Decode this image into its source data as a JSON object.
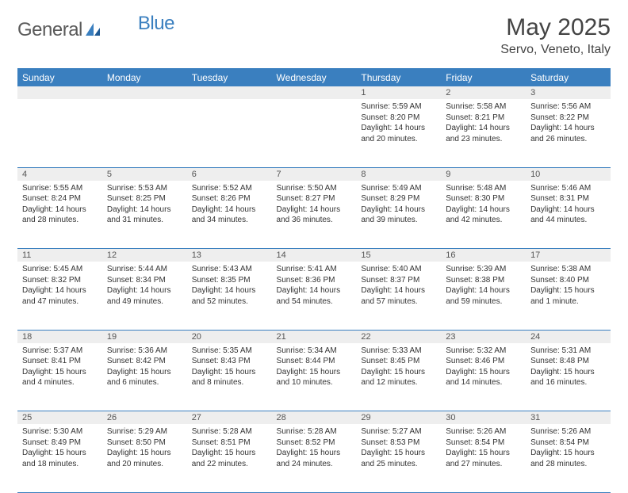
{
  "brand": {
    "part1": "General",
    "part2": "Blue"
  },
  "title": "May 2025",
  "location": "Servo, Veneto, Italy",
  "colors": {
    "accent": "#3a7fbf",
    "header_text": "#ffffff",
    "daynum_bg": "#eeeeee",
    "text": "#333333"
  },
  "weekdays": [
    "Sunday",
    "Monday",
    "Tuesday",
    "Wednesday",
    "Thursday",
    "Friday",
    "Saturday"
  ],
  "weeks": [
    [
      null,
      null,
      null,
      null,
      {
        "n": "1",
        "sr": "Sunrise: 5:59 AM",
        "ss": "Sunset: 8:20 PM",
        "d1": "Daylight: 14 hours",
        "d2": "and 20 minutes."
      },
      {
        "n": "2",
        "sr": "Sunrise: 5:58 AM",
        "ss": "Sunset: 8:21 PM",
        "d1": "Daylight: 14 hours",
        "d2": "and 23 minutes."
      },
      {
        "n": "3",
        "sr": "Sunrise: 5:56 AM",
        "ss": "Sunset: 8:22 PM",
        "d1": "Daylight: 14 hours",
        "d2": "and 26 minutes."
      }
    ],
    [
      {
        "n": "4",
        "sr": "Sunrise: 5:55 AM",
        "ss": "Sunset: 8:24 PM",
        "d1": "Daylight: 14 hours",
        "d2": "and 28 minutes."
      },
      {
        "n": "5",
        "sr": "Sunrise: 5:53 AM",
        "ss": "Sunset: 8:25 PM",
        "d1": "Daylight: 14 hours",
        "d2": "and 31 minutes."
      },
      {
        "n": "6",
        "sr": "Sunrise: 5:52 AM",
        "ss": "Sunset: 8:26 PM",
        "d1": "Daylight: 14 hours",
        "d2": "and 34 minutes."
      },
      {
        "n": "7",
        "sr": "Sunrise: 5:50 AM",
        "ss": "Sunset: 8:27 PM",
        "d1": "Daylight: 14 hours",
        "d2": "and 36 minutes."
      },
      {
        "n": "8",
        "sr": "Sunrise: 5:49 AM",
        "ss": "Sunset: 8:29 PM",
        "d1": "Daylight: 14 hours",
        "d2": "and 39 minutes."
      },
      {
        "n": "9",
        "sr": "Sunrise: 5:48 AM",
        "ss": "Sunset: 8:30 PM",
        "d1": "Daylight: 14 hours",
        "d2": "and 42 minutes."
      },
      {
        "n": "10",
        "sr": "Sunrise: 5:46 AM",
        "ss": "Sunset: 8:31 PM",
        "d1": "Daylight: 14 hours",
        "d2": "and 44 minutes."
      }
    ],
    [
      {
        "n": "11",
        "sr": "Sunrise: 5:45 AM",
        "ss": "Sunset: 8:32 PM",
        "d1": "Daylight: 14 hours",
        "d2": "and 47 minutes."
      },
      {
        "n": "12",
        "sr": "Sunrise: 5:44 AM",
        "ss": "Sunset: 8:34 PM",
        "d1": "Daylight: 14 hours",
        "d2": "and 49 minutes."
      },
      {
        "n": "13",
        "sr": "Sunrise: 5:43 AM",
        "ss": "Sunset: 8:35 PM",
        "d1": "Daylight: 14 hours",
        "d2": "and 52 minutes."
      },
      {
        "n": "14",
        "sr": "Sunrise: 5:41 AM",
        "ss": "Sunset: 8:36 PM",
        "d1": "Daylight: 14 hours",
        "d2": "and 54 minutes."
      },
      {
        "n": "15",
        "sr": "Sunrise: 5:40 AM",
        "ss": "Sunset: 8:37 PM",
        "d1": "Daylight: 14 hours",
        "d2": "and 57 minutes."
      },
      {
        "n": "16",
        "sr": "Sunrise: 5:39 AM",
        "ss": "Sunset: 8:38 PM",
        "d1": "Daylight: 14 hours",
        "d2": "and 59 minutes."
      },
      {
        "n": "17",
        "sr": "Sunrise: 5:38 AM",
        "ss": "Sunset: 8:40 PM",
        "d1": "Daylight: 15 hours",
        "d2": "and 1 minute."
      }
    ],
    [
      {
        "n": "18",
        "sr": "Sunrise: 5:37 AM",
        "ss": "Sunset: 8:41 PM",
        "d1": "Daylight: 15 hours",
        "d2": "and 4 minutes."
      },
      {
        "n": "19",
        "sr": "Sunrise: 5:36 AM",
        "ss": "Sunset: 8:42 PM",
        "d1": "Daylight: 15 hours",
        "d2": "and 6 minutes."
      },
      {
        "n": "20",
        "sr": "Sunrise: 5:35 AM",
        "ss": "Sunset: 8:43 PM",
        "d1": "Daylight: 15 hours",
        "d2": "and 8 minutes."
      },
      {
        "n": "21",
        "sr": "Sunrise: 5:34 AM",
        "ss": "Sunset: 8:44 PM",
        "d1": "Daylight: 15 hours",
        "d2": "and 10 minutes."
      },
      {
        "n": "22",
        "sr": "Sunrise: 5:33 AM",
        "ss": "Sunset: 8:45 PM",
        "d1": "Daylight: 15 hours",
        "d2": "and 12 minutes."
      },
      {
        "n": "23",
        "sr": "Sunrise: 5:32 AM",
        "ss": "Sunset: 8:46 PM",
        "d1": "Daylight: 15 hours",
        "d2": "and 14 minutes."
      },
      {
        "n": "24",
        "sr": "Sunrise: 5:31 AM",
        "ss": "Sunset: 8:48 PM",
        "d1": "Daylight: 15 hours",
        "d2": "and 16 minutes."
      }
    ],
    [
      {
        "n": "25",
        "sr": "Sunrise: 5:30 AM",
        "ss": "Sunset: 8:49 PM",
        "d1": "Daylight: 15 hours",
        "d2": "and 18 minutes."
      },
      {
        "n": "26",
        "sr": "Sunrise: 5:29 AM",
        "ss": "Sunset: 8:50 PM",
        "d1": "Daylight: 15 hours",
        "d2": "and 20 minutes."
      },
      {
        "n": "27",
        "sr": "Sunrise: 5:28 AM",
        "ss": "Sunset: 8:51 PM",
        "d1": "Daylight: 15 hours",
        "d2": "and 22 minutes."
      },
      {
        "n": "28",
        "sr": "Sunrise: 5:28 AM",
        "ss": "Sunset: 8:52 PM",
        "d1": "Daylight: 15 hours",
        "d2": "and 24 minutes."
      },
      {
        "n": "29",
        "sr": "Sunrise: 5:27 AM",
        "ss": "Sunset: 8:53 PM",
        "d1": "Daylight: 15 hours",
        "d2": "and 25 minutes."
      },
      {
        "n": "30",
        "sr": "Sunrise: 5:26 AM",
        "ss": "Sunset: 8:54 PM",
        "d1": "Daylight: 15 hours",
        "d2": "and 27 minutes."
      },
      {
        "n": "31",
        "sr": "Sunrise: 5:26 AM",
        "ss": "Sunset: 8:54 PM",
        "d1": "Daylight: 15 hours",
        "d2": "and 28 minutes."
      }
    ]
  ]
}
